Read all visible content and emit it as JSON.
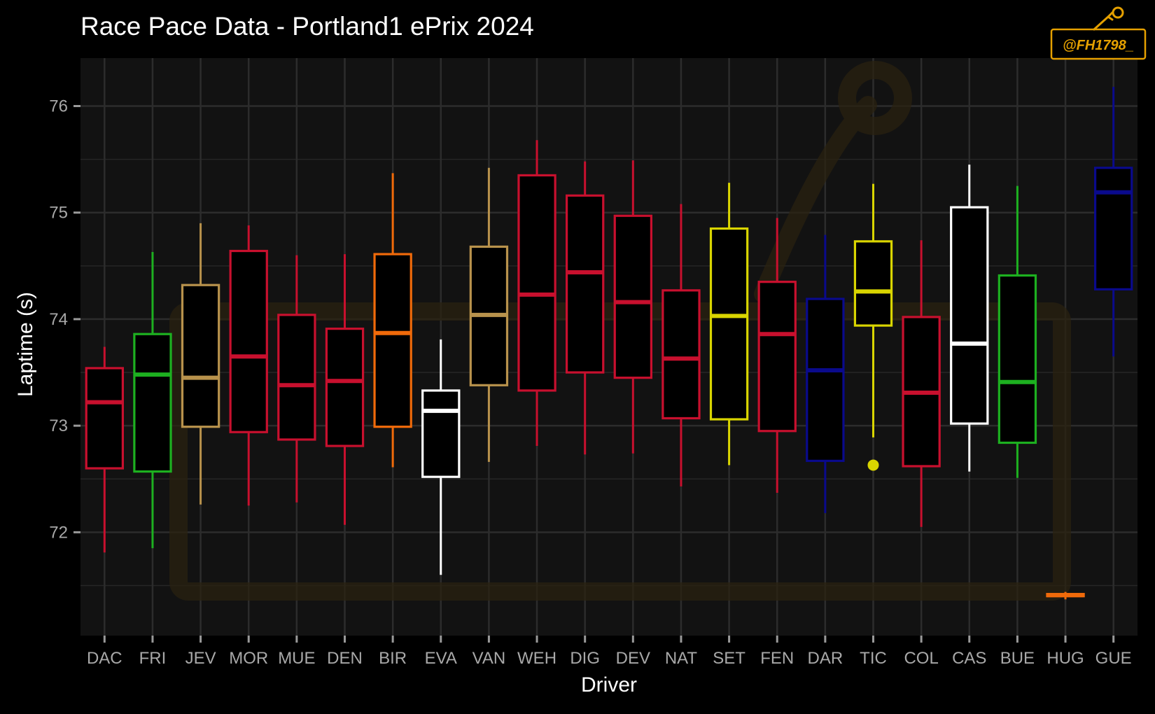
{
  "chart_data": {
    "type": "box",
    "title": "Race Pace Data - Portland1 ePrix 2024",
    "xlabel": "Driver",
    "ylabel": "Laptime (s)",
    "ylim": [
      71.03,
      76.45
    ],
    "yticks": [
      72,
      73,
      74,
      75,
      76
    ],
    "yticks_labels": [
      "72",
      "73",
      "74",
      "75",
      "76"
    ],
    "grid": true,
    "legend": "none",
    "watermark": "@FH1798_",
    "categories": [
      "DAC",
      "FRI",
      "JEV",
      "MOR",
      "MUE",
      "DEN",
      "BIR",
      "EVA",
      "VAN",
      "WEH",
      "DIG",
      "DEV",
      "NAT",
      "SET",
      "FEN",
      "DAR",
      "TIC",
      "COL",
      "CAS",
      "BUE",
      "HUG",
      "GUE"
    ],
    "boxes": [
      {
        "driver": "DAC",
        "color": "#c8102e",
        "min": 71.81,
        "q1": 72.6,
        "median": 73.22,
        "q3": 73.54,
        "max": 73.74,
        "outliers": []
      },
      {
        "driver": "FRI",
        "color": "#1db020",
        "min": 71.85,
        "q1": 72.57,
        "median": 73.48,
        "q3": 73.86,
        "max": 74.63,
        "outliers": []
      },
      {
        "driver": "JEV",
        "color": "#b8924c",
        "min": 72.26,
        "q1": 72.99,
        "median": 73.45,
        "q3": 74.32,
        "max": 74.9,
        "outliers": []
      },
      {
        "driver": "MOR",
        "color": "#c8102e",
        "min": 72.25,
        "q1": 72.94,
        "median": 73.65,
        "q3": 74.64,
        "max": 74.88,
        "outliers": []
      },
      {
        "driver": "MUE",
        "color": "#c8102e",
        "min": 72.28,
        "q1": 72.87,
        "median": 73.38,
        "q3": 74.04,
        "max": 74.6,
        "outliers": []
      },
      {
        "driver": "DEN",
        "color": "#c8102e",
        "min": 72.07,
        "q1": 72.81,
        "median": 73.42,
        "q3": 73.91,
        "max": 74.61,
        "outliers": []
      },
      {
        "driver": "BIR",
        "color": "#f06a0a",
        "min": 72.61,
        "q1": 72.99,
        "median": 73.87,
        "q3": 74.61,
        "max": 75.37,
        "outliers": []
      },
      {
        "driver": "EVA",
        "color": "#ffffff",
        "min": 71.6,
        "q1": 72.52,
        "median": 73.14,
        "q3": 73.33,
        "max": 73.81,
        "outliers": []
      },
      {
        "driver": "VAN",
        "color": "#b8924c",
        "min": 72.66,
        "q1": 73.38,
        "median": 74.04,
        "q3": 74.68,
        "max": 75.42,
        "outliers": []
      },
      {
        "driver": "WEH",
        "color": "#c8102e",
        "min": 72.81,
        "q1": 73.33,
        "median": 74.23,
        "q3": 75.35,
        "max": 75.68,
        "outliers": []
      },
      {
        "driver": "DIG",
        "color": "#c8102e",
        "min": 72.73,
        "q1": 73.5,
        "median": 74.44,
        "q3": 75.16,
        "max": 75.48,
        "outliers": []
      },
      {
        "driver": "DEV",
        "color": "#c8102e",
        "min": 72.74,
        "q1": 73.45,
        "median": 74.16,
        "q3": 74.97,
        "max": 75.49,
        "outliers": []
      },
      {
        "driver": "NAT",
        "color": "#c8102e",
        "min": 72.43,
        "q1": 73.07,
        "median": 73.63,
        "q3": 74.27,
        "max": 75.08,
        "outliers": []
      },
      {
        "driver": "SET",
        "color": "#d9d500",
        "min": 72.63,
        "q1": 73.06,
        "median": 74.03,
        "q3": 74.85,
        "max": 75.28,
        "outliers": []
      },
      {
        "driver": "FEN",
        "color": "#c8102e",
        "min": 72.37,
        "q1": 72.95,
        "median": 73.86,
        "q3": 74.35,
        "max": 74.95,
        "outliers": []
      },
      {
        "driver": "DAR",
        "color": "#0a0a8c",
        "min": 72.18,
        "q1": 72.67,
        "median": 73.52,
        "q3": 74.19,
        "max": 74.79,
        "outliers": []
      },
      {
        "driver": "TIC",
        "color": "#d9d500",
        "min": 72.89,
        "q1": 73.94,
        "median": 74.26,
        "q3": 74.73,
        "max": 75.27,
        "outliers": [
          72.63
        ]
      },
      {
        "driver": "COL",
        "color": "#c8102e",
        "min": 72.05,
        "q1": 72.62,
        "median": 73.31,
        "q3": 74.02,
        "max": 74.74,
        "outliers": []
      },
      {
        "driver": "CAS",
        "color": "#ffffff",
        "min": 72.57,
        "q1": 73.02,
        "median": 73.77,
        "q3": 75.05,
        "max": 75.45,
        "outliers": []
      },
      {
        "driver": "BUE",
        "color": "#1db020",
        "min": 72.51,
        "q1": 72.84,
        "median": 73.41,
        "q3": 74.41,
        "max": 75.25,
        "outliers": []
      },
      {
        "driver": "HUG",
        "color": "#f06a0a",
        "min": 71.37,
        "q1": 71.4,
        "median": 71.41,
        "q3": 71.42,
        "max": 71.44,
        "outliers": []
      },
      {
        "driver": "GUE",
        "color": "#0a0a8c",
        "min": 73.65,
        "q1": 74.28,
        "median": 75.19,
        "q3": 75.42,
        "max": 76.18,
        "outliers": []
      }
    ]
  }
}
